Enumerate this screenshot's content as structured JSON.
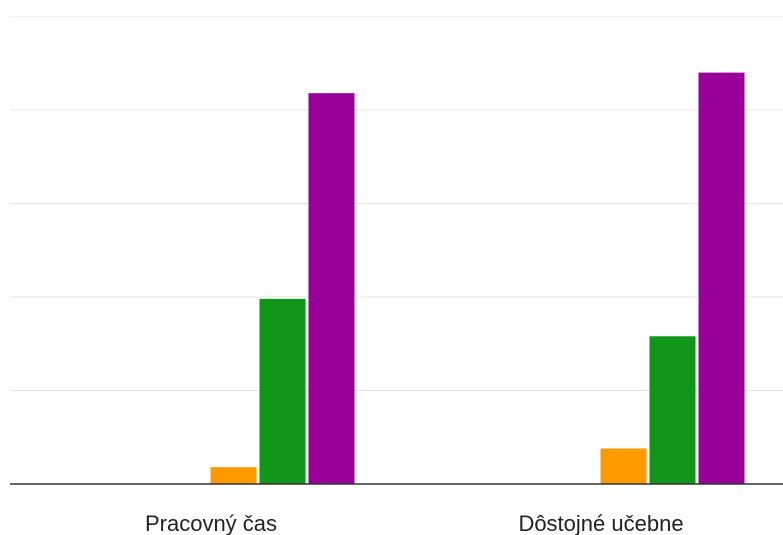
{
  "chart_data": {
    "type": "bar",
    "title": "",
    "xlabel": "",
    "ylabel": "",
    "categories": [
      "Pracovný čas",
      "Dôstojné učebne"
    ],
    "ylim": [
      0,
      50
    ],
    "grid": true,
    "legend": "none",
    "series": [
      {
        "color": "#ff9900",
        "values": [
          0,
          0
        ]
      },
      {
        "color": "#ff9900",
        "values": [
          1.8,
          3.8
        ]
      },
      {
        "color": "#109618",
        "values": [
          19.8,
          15.8
        ]
      },
      {
        "color": "#990099",
        "values": [
          41.8,
          44.0
        ]
      }
    ]
  }
}
